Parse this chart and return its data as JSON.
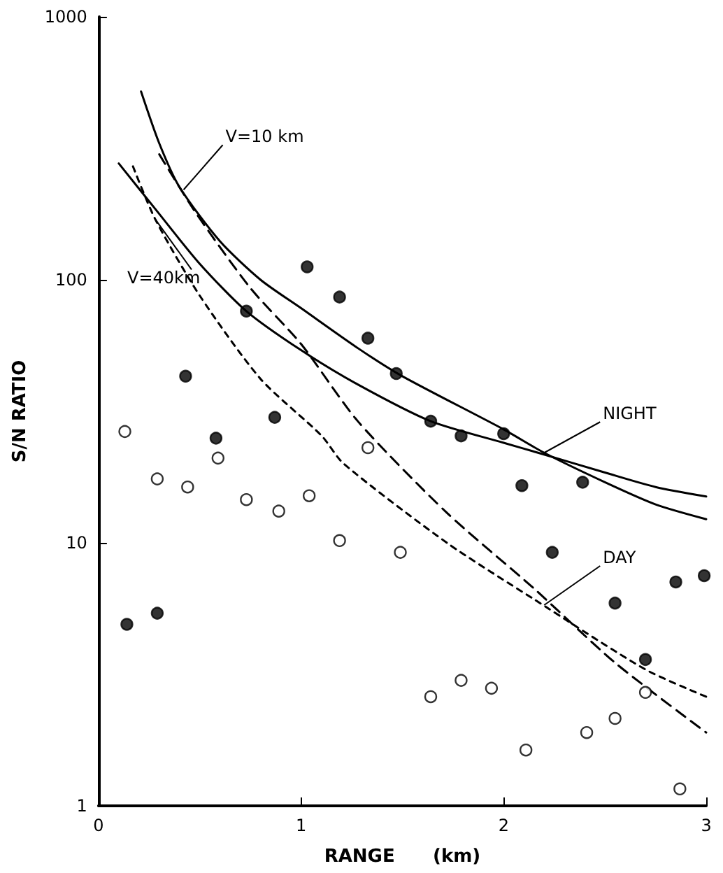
{
  "chart_data": {
    "type": "scatter",
    "xlabel": "RANGE      (km)",
    "ylabel": "S/N RATIO",
    "xlim": [
      0,
      3
    ],
    "xticks": [
      0,
      1,
      2,
      3
    ],
    "ylim": [
      1,
      1000
    ],
    "yticks": [
      1,
      10,
      100,
      1000
    ],
    "log": "y",
    "grid": false,
    "marker": "circle",
    "series": [
      {
        "color": "#000000",
        "x": [
          0.14,
          0.29,
          0.43,
          0.58,
          0.73,
          0.87,
          1.03,
          1.19,
          1.33,
          1.47,
          1.64,
          1.79,
          2.0,
          2.09,
          2.24,
          2.39,
          2.55,
          2.7,
          2.85,
          2.99
        ],
        "values": [
          4.9,
          5.4,
          43,
          25,
          76,
          30,
          112,
          86,
          60,
          44,
          29,
          25.5,
          26,
          16.5,
          9.2,
          17,
          5.9,
          3.6,
          7.1,
          7.5
        ]
      },
      {
        "color": "#ffffff",
        "x": [
          0.13,
          0.29,
          0.44,
          0.59,
          0.73,
          0.89,
          1.04,
          1.19,
          1.33,
          1.49,
          1.64,
          1.79,
          1.94,
          2.11,
          2.41,
          2.55,
          2.7,
          2.87
        ],
        "values": [
          26.5,
          17.5,
          16.3,
          21,
          14.6,
          13.2,
          15.1,
          10.2,
          23,
          9.2,
          2.6,
          3.0,
          2.8,
          1.63,
          1.9,
          2.15,
          2.7,
          1.16
        ]
      },
      {
        "type": "line",
        "color": "#000000",
        "marker": "none",
        "line_style": "solid",
        "x": [
          0.21,
          0.3,
          0.4,
          0.6,
          0.8,
          1.0,
          1.28,
          1.5,
          2.0,
          2.2,
          2.5,
          2.75,
          3.0
        ],
        "values": [
          520,
          330,
          225,
          140,
          100,
          78,
          55,
          43,
          27,
          22,
          17,
          14,
          12.3
        ]
      },
      {
        "type": "line",
        "color": "#000000",
        "marker": "none",
        "line_style": "solid",
        "x": [
          0.1,
          0.28,
          0.5,
          0.73,
          1.0,
          1.28,
          1.64,
          2.0,
          2.17,
          2.5,
          2.75,
          3.0
        ],
        "values": [
          277,
          186,
          115,
          76,
          54,
          40,
          29,
          24,
          22,
          18.5,
          16.3,
          15
        ]
      },
      {
        "type": "line",
        "color": "#000000",
        "marker": "none",
        "line_style": "dashed",
        "x": [
          0.3,
          0.48,
          0.75,
          1.0,
          1.28,
          1.72,
          2.15,
          2.55,
          3.0
        ],
        "values": [
          300,
          180,
          93,
          57,
          29,
          13,
          6.7,
          3.5,
          1.9
        ]
      },
      {
        "type": "line",
        "color": "#000000",
        "marker": "none",
        "line_style": "dotted",
        "x": [
          0.17,
          0.28,
          0.5,
          0.8,
          1.1,
          1.21,
          1.72,
          2.15,
          2.7,
          3.0
        ],
        "values": [
          270,
          170,
          87,
          42,
          25.6,
          20,
          10,
          6.1,
          3.3,
          2.6
        ]
      }
    ],
    "annotations": [
      {
        "text": "V=10 km",
        "x": 0.42,
        "y": 220
      },
      {
        "text": "V=40km",
        "x": 0.28,
        "y": 170
      },
      {
        "text": "NIGHT",
        "x": 2.2,
        "y": 22
      },
      {
        "text": "DAY",
        "x": 2.2,
        "y": 5.8
      }
    ]
  }
}
